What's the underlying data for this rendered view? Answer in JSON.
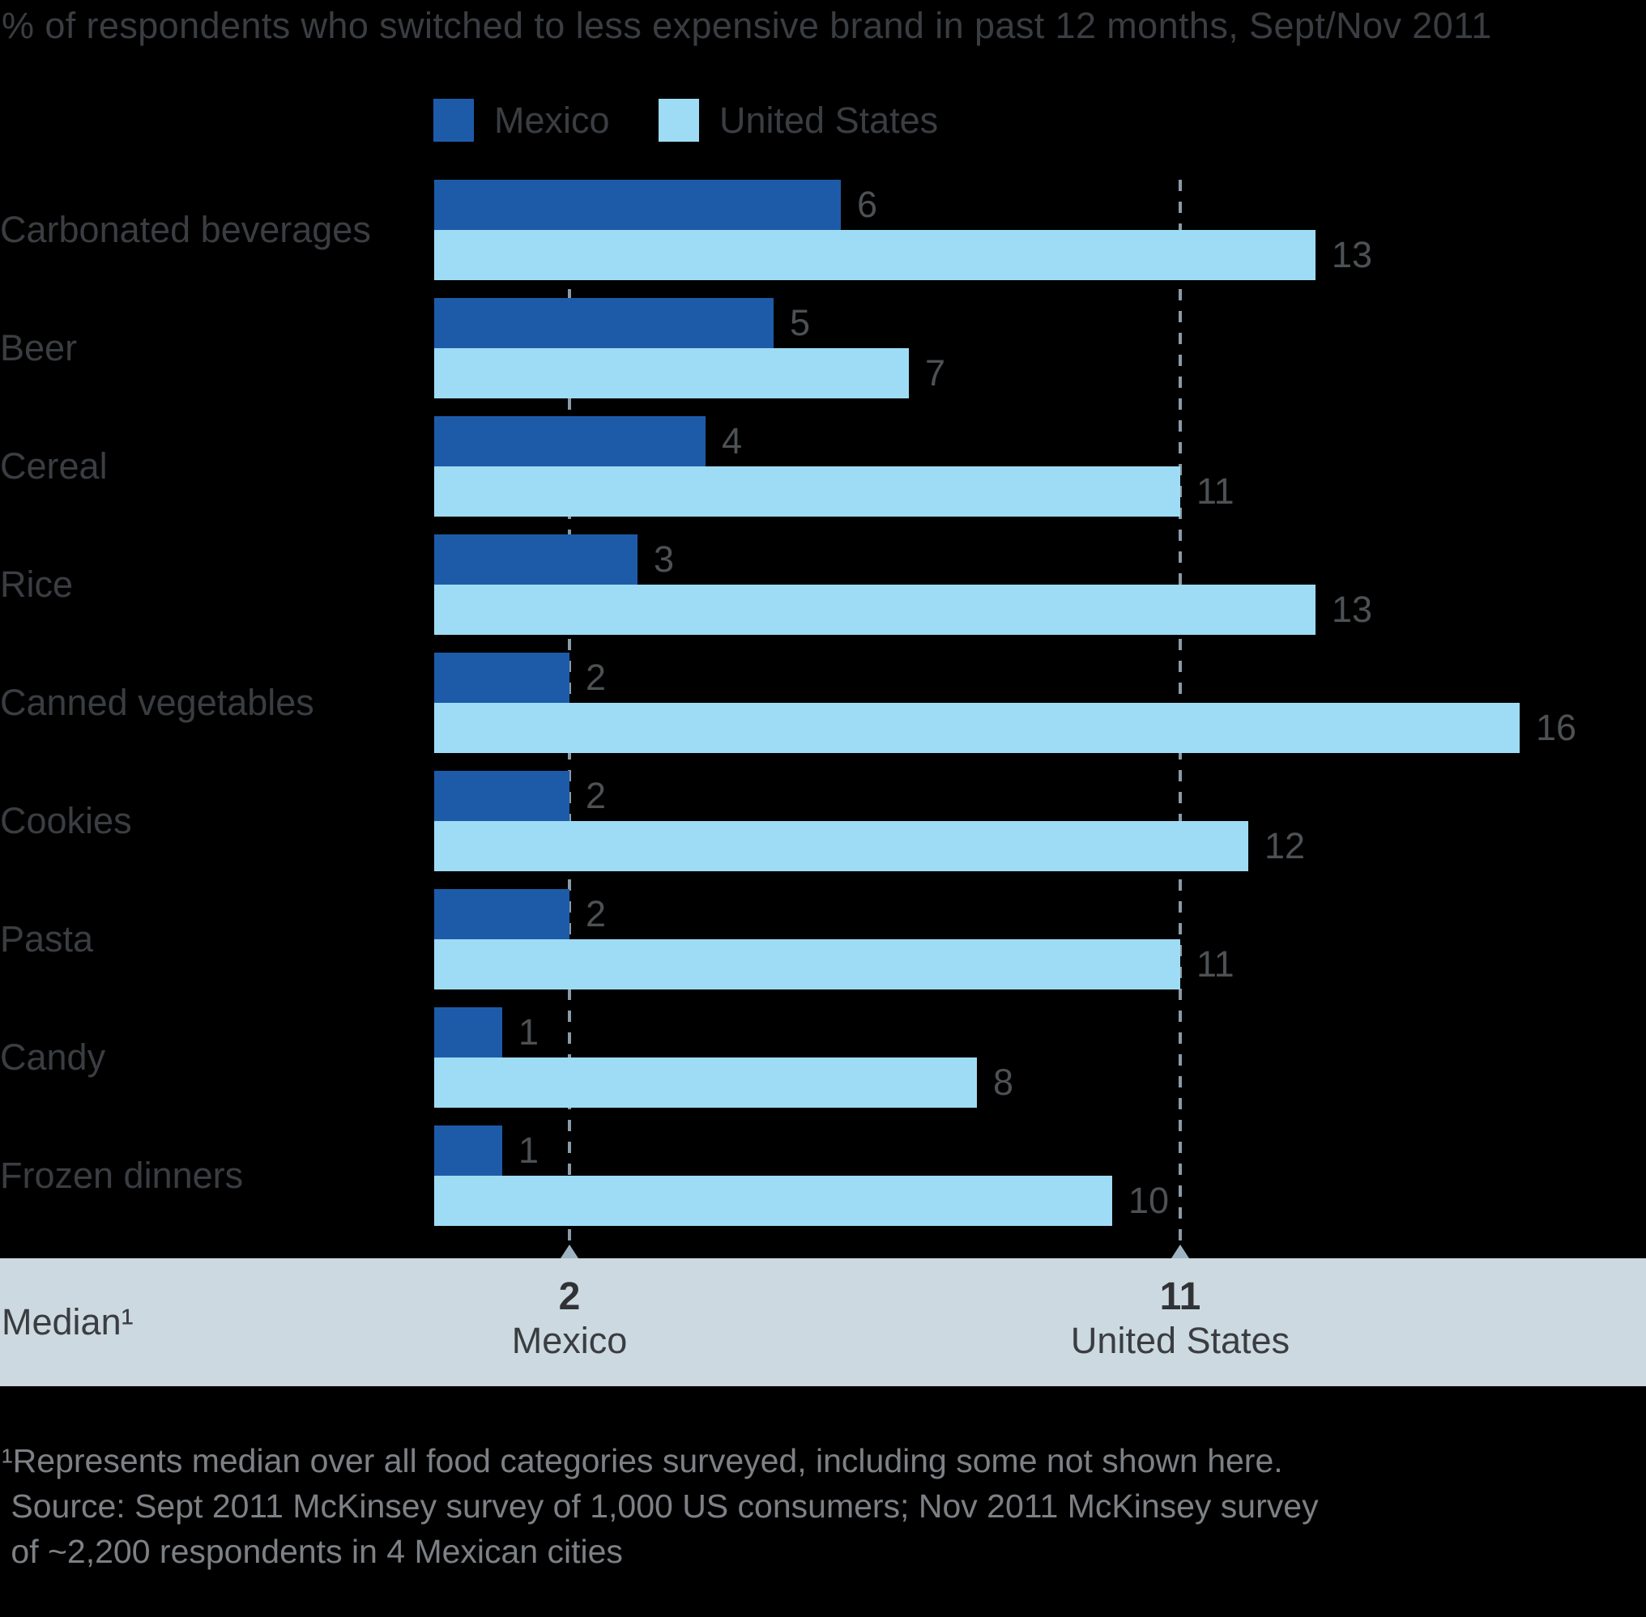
{
  "chart_data": {
    "type": "bar",
    "orientation": "horizontal",
    "title": "% of respondents who switched to less expensive brand in past 12 months, Sept/Nov 2011",
    "categories": [
      "Carbonated beverages",
      "Beer",
      "Cereal",
      "Rice",
      "Canned vegetables",
      "Cookies",
      "Pasta",
      "Candy",
      "Frozen dinners"
    ],
    "series": [
      {
        "name": "Mexico",
        "values": [
          6,
          5,
          4,
          3,
          2,
          2,
          2,
          1,
          1
        ]
      },
      {
        "name": "United States",
        "values": [
          13,
          7,
          11,
          13,
          16,
          12,
          11,
          8,
          10
        ]
      }
    ],
    "x_axis": {
      "min": 0,
      "max": 16,
      "gridlines": "none",
      "tick_labels": "none"
    },
    "legend_position": "top",
    "median_label": "Median¹",
    "medians": [
      {
        "label": "Mexico",
        "value": 2
      },
      {
        "label": "United States",
        "value": 11
      }
    ]
  },
  "legend": [
    {
      "label": "Mexico"
    },
    {
      "label": "United States"
    }
  ],
  "footnotes": [
    "¹Represents median over all food categories surveyed, including some not shown here.",
    " Source: Sept 2011 McKinsey survey of 1,000 US consumers; Nov 2011 McKinsey survey",
    " of ~2,200 respondents in 4 Mexican cities"
  ],
  "colors": {
    "mexico_bar": "#1d5ba9",
    "us_bar": "#9edcf6",
    "band_bg": "#cdd9e0",
    "dashed_line": "#8a9aa6",
    "marker": "#9eb4c2",
    "text_dark": "#3a3d41",
    "value_label": "#4d5154",
    "footnote_text": "#7d8084"
  }
}
